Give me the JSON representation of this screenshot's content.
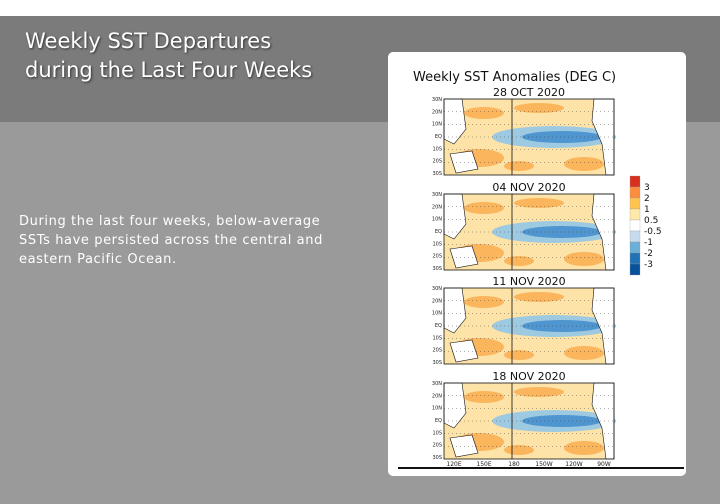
{
  "slide": {
    "title": "Weekly SST Departures during the Last Four Weeks",
    "body": "During the last four weeks, below-average SSTs have persisted across the central and eastern Pacific Ocean."
  },
  "figure": {
    "title": "Weekly SST Anomalies (DEG C)",
    "panels": [
      {
        "label": "28 OCT 2020"
      },
      {
        "label": "04 NOV 2020"
      },
      {
        "label": "11 NOV 2020"
      },
      {
        "label": "18 NOV 2020"
      }
    ],
    "lat_labels": [
      "30N",
      "20N",
      "10N",
      "EQ",
      "10S",
      "20S",
      "30S"
    ],
    "lon_labels": [
      "120E",
      "150E",
      "180",
      "150W",
      "120W",
      "90W"
    ],
    "colorbar": {
      "labels": [
        "3",
        "2",
        "1",
        "0.5",
        "-0.5",
        "-1",
        "-2",
        "-3"
      ],
      "colors": [
        "#d7301f",
        "#fc8d3c",
        "#fec44f",
        "#ffe9a8",
        "#ffffff",
        "#c6dbef",
        "#6baed6",
        "#2171b5",
        "#08519c"
      ]
    }
  }
}
